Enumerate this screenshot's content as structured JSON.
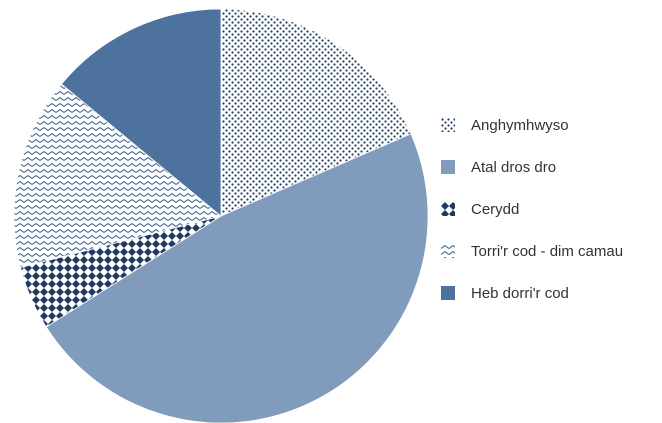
{
  "chart_data": {
    "type": "pie",
    "title": "",
    "start_angle_deg": 0,
    "direction": "clockwise",
    "series": [
      {
        "name": "Anghymhwyso",
        "value": 18.5,
        "color": "#1f3864",
        "pattern": "dots"
      },
      {
        "name": "Atal dros dro",
        "value": 47.5,
        "color": "#809bbb",
        "pattern": "solid"
      },
      {
        "name": "Cerydd",
        "value": 5.0,
        "color": "#1f3864",
        "pattern": "diamonds"
      },
      {
        "name": "Torri'r cod - dim camau",
        "value": 15.0,
        "color": "#4a6891",
        "pattern": "zigzag"
      },
      {
        "name": "Heb dorri'r cod",
        "value": 14.0,
        "color": "#4e729e",
        "pattern": "solid"
      }
    ],
    "legend_position": "right"
  }
}
